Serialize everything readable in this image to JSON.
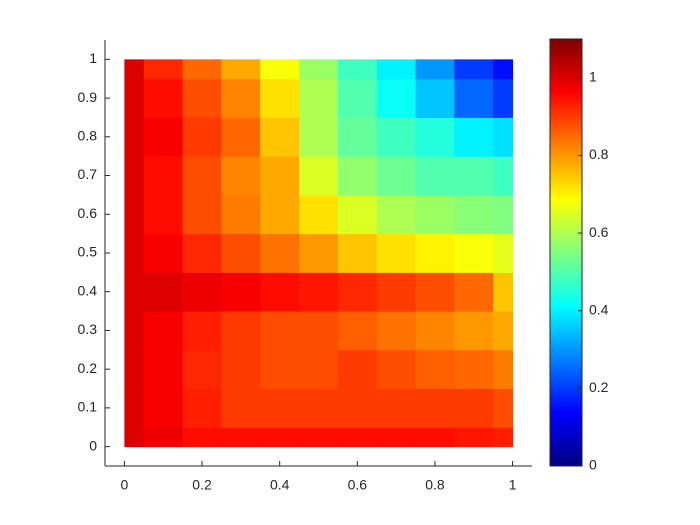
{
  "chart_data": {
    "type": "heatmap",
    "colormap": "jet",
    "x": [
      0,
      0.1,
      0.2,
      0.3,
      0.4,
      0.5,
      0.6,
      0.7,
      0.8,
      0.9,
      1
    ],
    "y": [
      0,
      0.1,
      0.2,
      0.3,
      0.4,
      0.5,
      0.6,
      0.7,
      0.8,
      0.9,
      1
    ],
    "z": [
      [
        1.0,
        0.98,
        0.95,
        0.95,
        0.95,
        0.95,
        0.95,
        0.95,
        0.95,
        0.94,
        0.93
      ],
      [
        1.0,
        0.97,
        0.93,
        0.9,
        0.9,
        0.9,
        0.9,
        0.9,
        0.9,
        0.9,
        0.88
      ],
      [
        1.0,
        0.97,
        0.92,
        0.9,
        0.88,
        0.88,
        0.9,
        0.88,
        0.86,
        0.85,
        0.83
      ],
      [
        1.0,
        0.97,
        0.93,
        0.9,
        0.88,
        0.88,
        0.86,
        0.84,
        0.82,
        0.8,
        0.78
      ],
      [
        1.0,
        1.0,
        0.98,
        0.97,
        0.95,
        0.94,
        0.92,
        0.9,
        0.88,
        0.85,
        0.75
      ],
      [
        1.0,
        0.97,
        0.92,
        0.88,
        0.84,
        0.8,
        0.75,
        0.72,
        0.7,
        0.68,
        0.66
      ],
      [
        1.0,
        0.95,
        0.88,
        0.83,
        0.78,
        0.72,
        0.65,
        0.6,
        0.58,
        0.56,
        0.55
      ],
      [
        1.0,
        0.95,
        0.88,
        0.82,
        0.78,
        0.65,
        0.57,
        0.53,
        0.5,
        0.5,
        0.48
      ],
      [
        1.0,
        0.97,
        0.9,
        0.85,
        0.75,
        0.6,
        0.52,
        0.48,
        0.45,
        0.4,
        0.38
      ],
      [
        1.0,
        0.95,
        0.88,
        0.82,
        0.72,
        0.6,
        0.5,
        0.42,
        0.35,
        0.25,
        0.2
      ],
      [
        1.0,
        0.92,
        0.85,
        0.78,
        0.68,
        0.58,
        0.48,
        0.4,
        0.3,
        0.2,
        0.15
      ]
    ],
    "xlim": [
      -0.05,
      1.05
    ],
    "ylim": [
      -0.05,
      1.05
    ],
    "xticks": [
      0,
      0.2,
      0.4,
      0.6,
      0.8,
      1
    ],
    "yticks": [
      0,
      0.1,
      0.2,
      0.3,
      0.4,
      0.5,
      0.6,
      0.7,
      0.8,
      0.9,
      1
    ],
    "colorbar": {
      "clim": [
        0,
        1.1
      ],
      "ticks": [
        0,
        0.2,
        0.4,
        0.6,
        0.8,
        1
      ]
    }
  }
}
